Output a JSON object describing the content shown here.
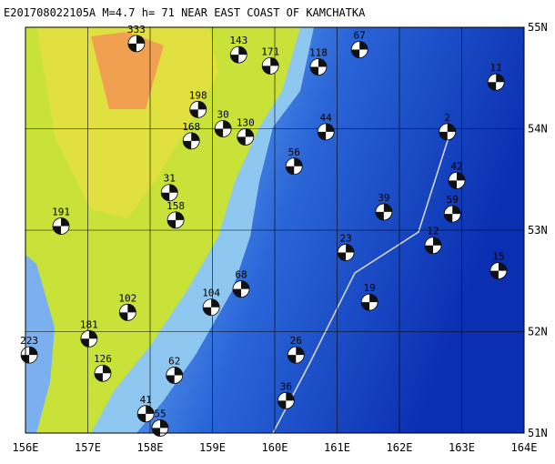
{
  "map": {
    "title": "E201708022105A M=4.7 h= 71 NEAR EAST COAST OF KAMCHATKA",
    "lonlim": [
      156,
      164
    ],
    "latlim": [
      51,
      55
    ],
    "lonticks": [
      {
        "value": 156,
        "label": "156E"
      },
      {
        "value": 157,
        "label": "157E"
      },
      {
        "value": 158,
        "label": "158E"
      },
      {
        "value": 159,
        "label": "159E"
      },
      {
        "value": 160,
        "label": "160E"
      },
      {
        "value": 161,
        "label": "161E"
      },
      {
        "value": 162,
        "label": "162E"
      },
      {
        "value": 163,
        "label": "163E"
      },
      {
        "value": 164,
        "label": "164E"
      }
    ],
    "latticks": [
      {
        "value": 51,
        "label": "51N"
      },
      {
        "value": 52,
        "label": "52N"
      },
      {
        "value": 53,
        "label": "53N"
      },
      {
        "value": 54,
        "label": "54N"
      },
      {
        "value": 55,
        "label": "55N"
      }
    ],
    "events": [
      {
        "label": "333",
        "lon": 157.78,
        "lat": 54.84
      },
      {
        "label": "143",
        "lon": 159.42,
        "lat": 54.73
      },
      {
        "label": "171",
        "lon": 159.93,
        "lat": 54.62
      },
      {
        "label": "118",
        "lon": 160.7,
        "lat": 54.61
      },
      {
        "label": "67",
        "lon": 161.36,
        "lat": 54.78
      },
      {
        "label": "198",
        "lon": 158.77,
        "lat": 54.19
      },
      {
        "label": "30",
        "lon": 159.17,
        "lat": 54.0
      },
      {
        "label": "130",
        "lon": 159.53,
        "lat": 53.92
      },
      {
        "label": "168",
        "lon": 158.66,
        "lat": 53.88
      },
      {
        "label": "31",
        "lon": 158.31,
        "lat": 53.37
      },
      {
        "label": "191",
        "lon": 156.57,
        "lat": 53.04
      },
      {
        "label": "158",
        "lon": 158.41,
        "lat": 53.1
      },
      {
        "label": "56",
        "lon": 160.31,
        "lat": 53.63
      },
      {
        "label": "44",
        "lon": 160.82,
        "lat": 53.97
      },
      {
        "label": "42",
        "lon": 162.92,
        "lat": 53.49
      },
      {
        "label": "39",
        "lon": 161.75,
        "lat": 53.18
      },
      {
        "label": "59",
        "lon": 162.85,
        "lat": 53.16
      },
      {
        "label": "12",
        "lon": 162.54,
        "lat": 52.85
      },
      {
        "label": "15",
        "lon": 163.59,
        "lat": 52.6
      },
      {
        "label": "68",
        "lon": 159.46,
        "lat": 52.42
      },
      {
        "label": "19",
        "lon": 161.52,
        "lat": 52.29
      },
      {
        "label": "104",
        "lon": 158.98,
        "lat": 52.24
      },
      {
        "label": "102",
        "lon": 157.64,
        "lat": 52.19
      },
      {
        "label": "181",
        "lon": 157.02,
        "lat": 51.93
      },
      {
        "label": "223",
        "lon": 156.06,
        "lat": 51.77
      },
      {
        "label": "126",
        "lon": 157.24,
        "lat": 51.59
      },
      {
        "label": "62",
        "lon": 158.39,
        "lat": 51.57
      },
      {
        "label": "41",
        "lon": 157.93,
        "lat": 51.19
      },
      {
        "label": "55",
        "lon": 158.16,
        "lat": 51.05
      },
      {
        "label": "36",
        "lon": 160.18,
        "lat": 51.32
      },
      {
        "label": "26",
        "lon": 160.34,
        "lat": 51.77
      },
      {
        "label": "23",
        "lon": 161.14,
        "lat": 52.78
      },
      {
        "label": "2",
        "lon": 162.77,
        "lat": 53.97
      },
      {
        "label": "11",
        "lon": 163.55,
        "lat": 54.46
      }
    ]
  }
}
